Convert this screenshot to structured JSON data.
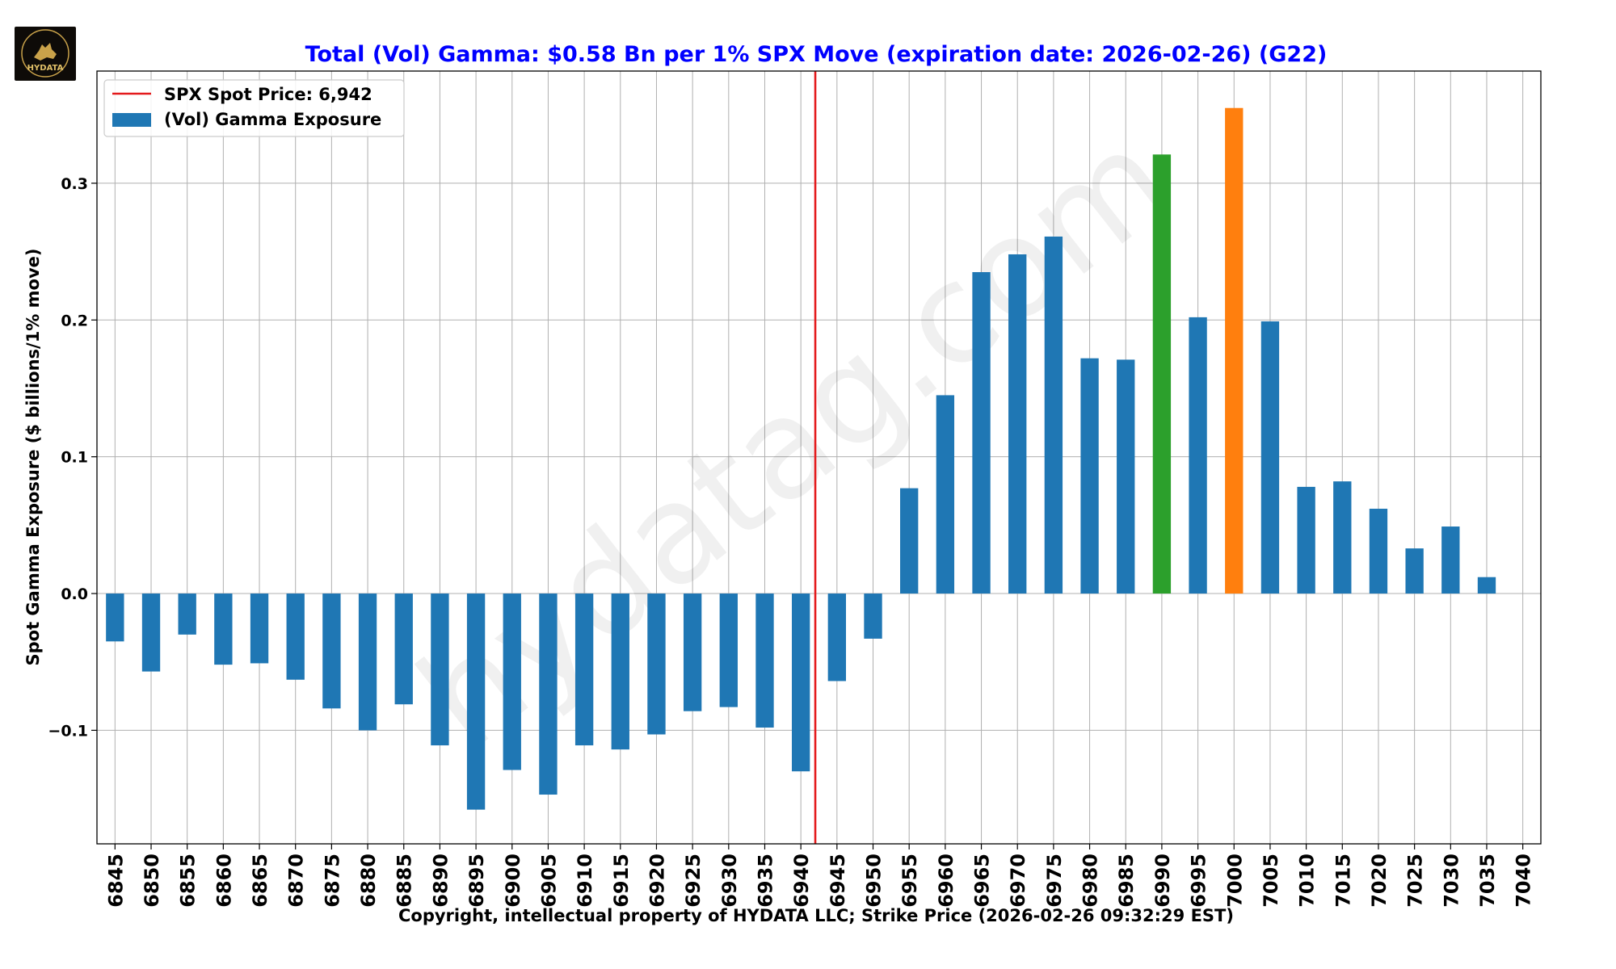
{
  "logo": {
    "text": "HYDATA"
  },
  "watermark": "hydatag.com",
  "chart_data": {
    "type": "bar",
    "title": "Total (Vol) Gamma: $0.58 Bn per 1% SPX Move (expiration date: 2026-02-26) (G22)",
    "xlabel": "Copyright, intellectual property of HYDATA LLC; Strike Price (2026-02-26 09:32:29 EST)",
    "ylabel": "Spot Gamma Exposure ($ billions/1% move)",
    "ylim": [
      -0.183,
      0.382
    ],
    "yticks": [
      -0.1,
      0.0,
      0.1,
      0.2,
      0.3
    ],
    "ytick_labels": [
      "−0.1",
      "0.0",
      "0.1",
      "0.2",
      "0.3"
    ],
    "grid": true,
    "legend_position": "top-left",
    "categories": [
      "6845",
      "6850",
      "6855",
      "6860",
      "6865",
      "6870",
      "6875",
      "6880",
      "6885",
      "6890",
      "6895",
      "6900",
      "6905",
      "6910",
      "6915",
      "6920",
      "6925",
      "6930",
      "6935",
      "6940",
      "6945",
      "6950",
      "6955",
      "6960",
      "6965",
      "6970",
      "6975",
      "6980",
      "6985",
      "6990",
      "6995",
      "7000",
      "7005",
      "7010",
      "7015",
      "7020",
      "7025",
      "7030",
      "7035",
      "7040"
    ],
    "series": [
      {
        "name": "(Vol) Gamma Exposure",
        "color": "#1f77b4",
        "values": [
          -0.035,
          -0.057,
          -0.03,
          -0.052,
          -0.051,
          -0.063,
          -0.084,
          -0.1,
          -0.081,
          -0.111,
          -0.158,
          -0.129,
          -0.147,
          -0.111,
          -0.114,
          -0.103,
          -0.086,
          -0.083,
          -0.098,
          -0.13,
          -0.064,
          -0.033,
          0.077,
          0.145,
          0.235,
          0.248,
          0.261,
          0.172,
          0.171,
          0.321,
          0.202,
          0.355,
          0.199,
          0.078,
          0.082,
          0.062,
          0.033,
          0.049,
          0.012,
          null
        ]
      }
    ],
    "highlight_colors": {
      "6990": "#2ca02c",
      "7000": "#ff7f0e"
    },
    "spot_line": {
      "label": "SPX Spot Price: 6,942",
      "value": 6942,
      "color": "#e41a1c"
    },
    "colors": {
      "title": "#0000ff",
      "bar": "#1f77b4",
      "grid": "#b0b0b0"
    }
  }
}
